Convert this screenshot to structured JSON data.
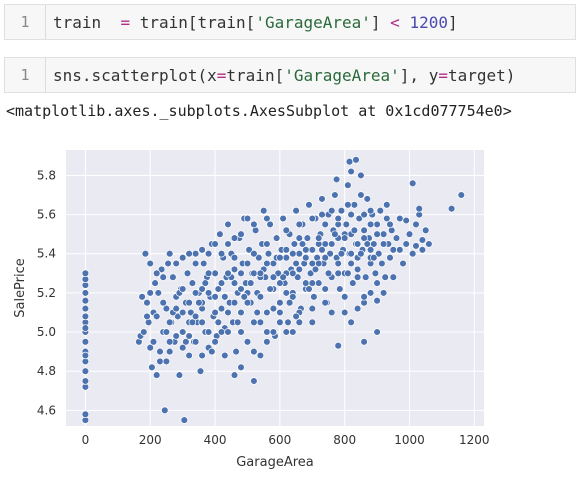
{
  "cells": [
    {
      "number": "1",
      "tokens": [
        {
          "t": "train  ",
          "c": "tok-kw"
        },
        {
          "t": "=",
          "c": "tok-op"
        },
        {
          "t": " train[train[",
          "c": "tok-kw"
        },
        {
          "t": "'GarageArea'",
          "c": "tok-str"
        },
        {
          "t": "] ",
          "c": "tok-kw"
        },
        {
          "t": "<",
          "c": "tok-op"
        },
        {
          "t": " ",
          "c": "tok-kw"
        },
        {
          "t": "1200",
          "c": "tok-num"
        },
        {
          "t": "]",
          "c": "tok-kw"
        }
      ]
    },
    {
      "number": "1",
      "tokens": [
        {
          "t": "sns.scatterplot(x",
          "c": "tok-kw"
        },
        {
          "t": "=",
          "c": "tok-op"
        },
        {
          "t": "train[",
          "c": "tok-kw"
        },
        {
          "t": "'GarageArea'",
          "c": "tok-str"
        },
        {
          "t": "], y",
          "c": "tok-kw"
        },
        {
          "t": "=",
          "c": "tok-op"
        },
        {
          "t": "target)",
          "c": "tok-kw"
        }
      ]
    }
  ],
  "output_text": "<matplotlib.axes._subplots.AxesSubplot at 0x1cd077754e0>",
  "colors": {
    "point": "#4c72b0",
    "plot_bg": "#eaeaf2",
    "grid": "#ffffff"
  },
  "chart_data": {
    "type": "scatter",
    "xlabel": "GarageArea",
    "ylabel": "SalePrice",
    "xlim": [
      -60,
      1230
    ],
    "ylim": [
      4.52,
      5.93
    ],
    "xticks": [
      0,
      200,
      400,
      600,
      800,
      1000,
      1200
    ],
    "yticks": [
      4.6,
      4.8,
      5.0,
      5.2,
      5.4,
      5.6,
      5.8
    ],
    "grid": true,
    "points": [
      [
        0,
        4.55
      ],
      [
        0,
        4.58
      ],
      [
        0,
        4.72
      ],
      [
        0,
        4.75
      ],
      [
        0,
        4.8
      ],
      [
        0,
        4.85
      ],
      [
        0,
        4.9
      ],
      [
        0,
        4.95
      ],
      [
        0,
        5.0
      ],
      [
        0,
        5.05
      ],
      [
        0,
        5.08
      ],
      [
        0,
        5.12
      ],
      [
        0,
        5.16
      ],
      [
        0,
        5.2
      ],
      [
        0,
        5.24
      ],
      [
        0,
        5.27
      ],
      [
        0,
        5.3
      ],
      [
        0,
        4.88
      ],
      [
        0,
        5.02
      ],
      [
        165,
        4.95
      ],
      [
        170,
        4.98
      ],
      [
        175,
        5.18
      ],
      [
        185,
        5.4
      ],
      [
        190,
        5.15
      ],
      [
        195,
        5.05
      ],
      [
        200,
        4.92
      ],
      [
        205,
        4.82
      ],
      [
        210,
        5.1
      ],
      [
        215,
        5.25
      ],
      [
        220,
        4.78
      ],
      [
        225,
        5.2
      ],
      [
        230,
        4.85
      ],
      [
        235,
        5.32
      ],
      [
        240,
        5.0
      ],
      [
        245,
        4.6
      ],
      [
        250,
        5.12
      ],
      [
        255,
        5.35
      ],
      [
        260,
        4.9
      ],
      [
        265,
        5.05
      ],
      [
        270,
        5.28
      ],
      [
        275,
        4.95
      ],
      [
        280,
        5.18
      ],
      [
        285,
        5.08
      ],
      [
        290,
        4.78
      ],
      [
        295,
        5.22
      ],
      [
        300,
        5.0
      ],
      [
        305,
        4.55
      ],
      [
        310,
        5.15
      ],
      [
        315,
        5.3
      ],
      [
        320,
        4.88
      ],
      [
        325,
        5.1
      ],
      [
        330,
        5.25
      ],
      [
        335,
        4.95
      ],
      [
        340,
        5.4
      ],
      [
        345,
        5.05
      ],
      [
        350,
        5.2
      ],
      [
        355,
        4.8
      ],
      [
        360,
        5.12
      ],
      [
        365,
        5.35
      ],
      [
        370,
        5.0
      ],
      [
        375,
        5.28
      ],
      [
        380,
        4.92
      ],
      [
        385,
        5.18
      ],
      [
        390,
        5.45
      ],
      [
        395,
        5.08
      ],
      [
        400,
        5.3
      ],
      [
        405,
        4.98
      ],
      [
        410,
        5.22
      ],
      [
        415,
        5.5
      ],
      [
        420,
        5.12
      ],
      [
        425,
        5.38
      ],
      [
        430,
        5.02
      ],
      [
        435,
        5.28
      ],
      [
        440,
        5.55
      ],
      [
        445,
        5.15
      ],
      [
        450,
        5.4
      ],
      [
        455,
        5.05
      ],
      [
        460,
        5.32
      ],
      [
        465,
        4.9
      ],
      [
        470,
        5.2
      ],
      [
        475,
        5.48
      ],
      [
        480,
        5.1
      ],
      [
        485,
        5.35
      ],
      [
        490,
        5.58
      ],
      [
        495,
        5.25
      ],
      [
        500,
        4.95
      ],
      [
        505,
        5.42
      ],
      [
        510,
        5.15
      ],
      [
        515,
        5.3
      ],
      [
        520,
        4.75
      ],
      [
        525,
        5.52
      ],
      [
        530,
        5.2
      ],
      [
        535,
        5.38
      ],
      [
        540,
        5.05
      ],
      [
        545,
        5.45
      ],
      [
        550,
        5.62
      ],
      [
        555,
        5.28
      ],
      [
        560,
        5.1
      ],
      [
        565,
        5.4
      ],
      [
        570,
        5.55
      ],
      [
        575,
        5.22
      ],
      [
        580,
        5.35
      ],
      [
        585,
        4.98
      ],
      [
        590,
        5.48
      ],
      [
        595,
        5.3
      ],
      [
        600,
        5.15
      ],
      [
        605,
        5.42
      ],
      [
        610,
        5.58
      ],
      [
        615,
        5.25
      ],
      [
        620,
        5.38
      ],
      [
        625,
        5.05
      ],
      [
        630,
        5.5
      ],
      [
        635,
        5.32
      ],
      [
        640,
        5.2
      ],
      [
        645,
        5.45
      ],
      [
        650,
        5.62
      ],
      [
        655,
        5.28
      ],
      [
        660,
        5.4
      ],
      [
        665,
        5.12
      ],
      [
        670,
        5.55
      ],
      [
        675,
        5.35
      ],
      [
        680,
        5.22
      ],
      [
        685,
        5.48
      ],
      [
        690,
        5.65
      ],
      [
        695,
        5.3
      ],
      [
        700,
        5.42
      ],
      [
        705,
        5.18
      ],
      [
        710,
        5.58
      ],
      [
        715,
        5.38
      ],
      [
        720,
        5.25
      ],
      [
        725,
        5.5
      ],
      [
        730,
        5.68
      ],
      [
        735,
        5.35
      ],
      [
        740,
        5.45
      ],
      [
        745,
        5.15
      ],
      [
        750,
        5.6
      ],
      [
        755,
        5.4
      ],
      [
        760,
        5.28
      ],
      [
        765,
        5.52
      ],
      [
        770,
        5.7
      ],
      [
        775,
        5.38
      ],
      [
        780,
        5.48
      ],
      [
        785,
        5.22
      ],
      [
        790,
        5.62
      ],
      [
        795,
        5.42
      ],
      [
        800,
        5.3
      ],
      [
        805,
        5.55
      ],
      [
        810,
        5.75
      ],
      [
        815,
        5.4
      ],
      [
        820,
        5.5
      ],
      [
        825,
        5.25
      ],
      [
        830,
        5.65
      ],
      [
        835,
        5.45
      ],
      [
        840,
        5.32
      ],
      [
        845,
        5.58
      ],
      [
        850,
        5.8
      ],
      [
        855,
        5.42
      ],
      [
        860,
        5.52
      ],
      [
        865,
        5.28
      ],
      [
        870,
        5.68
      ],
      [
        875,
        5.48
      ],
      [
        880,
        5.35
      ],
      [
        885,
        5.6
      ],
      [
        890,
        5.45
      ],
      [
        895,
        5.3
      ],
      [
        900,
        5.55
      ],
      [
        905,
        5.4
      ],
      [
        910,
        5.62
      ],
      [
        915,
        5.35
      ],
      [
        920,
        5.5
      ],
      [
        925,
        5.28
      ],
      [
        930,
        5.58
      ],
      [
        935,
        5.45
      ],
      [
        940,
        5.38
      ],
      [
        945,
        5.52
      ],
      [
        950,
        5.42
      ],
      [
        960,
        5.48
      ],
      [
        970,
        5.58
      ],
      [
        980,
        5.35
      ],
      [
        990,
        5.45
      ],
      [
        1000,
        5.5
      ],
      [
        1010,
        5.4
      ],
      [
        1020,
        5.55
      ],
      [
        1030,
        5.6
      ],
      [
        1040,
        5.42
      ],
      [
        1050,
        5.52
      ],
      [
        1060,
        5.45
      ],
      [
        815,
        5.87
      ],
      [
        835,
        5.88
      ],
      [
        820,
        5.82
      ],
      [
        775,
        5.78
      ],
      [
        1010,
        5.76
      ],
      [
        1160,
        5.7
      ],
      [
        1130,
        5.63
      ],
      [
        1030,
        5.63
      ],
      [
        990,
        5.57
      ],
      [
        1020,
        5.44
      ],
      [
        1040,
        5.42
      ],
      [
        1040,
        5.47
      ],
      [
        360,
        5.05
      ],
      [
        380,
        5.2
      ],
      [
        420,
        5.0
      ],
      [
        440,
        5.1
      ],
      [
        460,
        5.25
      ],
      [
        480,
        5.0
      ],
      [
        500,
        5.15
      ],
      [
        520,
        5.3
      ],
      [
        540,
        5.18
      ],
      [
        560,
        5.0
      ],
      [
        580,
        5.22
      ],
      [
        600,
        5.1
      ],
      [
        620,
        5.3
      ],
      [
        640,
        5.18
      ],
      [
        660,
        5.05
      ],
      [
        680,
        5.25
      ],
      [
        700,
        5.12
      ],
      [
        720,
        5.35
      ],
      [
        740,
        5.22
      ],
      [
        760,
        5.1
      ],
      [
        780,
        5.3
      ],
      [
        800,
        5.18
      ],
      [
        820,
        5.4
      ],
      [
        840,
        5.28
      ],
      [
        860,
        5.15
      ],
      [
        880,
        5.38
      ],
      [
        900,
        5.25
      ],
      [
        300,
        5.1
      ],
      [
        320,
        5.05
      ],
      [
        340,
        5.2
      ],
      [
        360,
        5.15
      ],
      [
        380,
        5.0
      ],
      [
        400,
        5.1
      ],
      [
        420,
        5.25
      ],
      [
        440,
        5.0
      ],
      [
        460,
        5.15
      ],
      [
        480,
        5.3
      ],
      [
        500,
        5.2
      ],
      [
        520,
        5.05
      ],
      [
        540,
        5.28
      ],
      [
        560,
        5.35
      ],
      [
        580,
        5.12
      ],
      [
        600,
        5.25
      ],
      [
        620,
        5.42
      ],
      [
        640,
        5.3
      ],
      [
        660,
        5.48
      ],
      [
        680,
        5.38
      ],
      [
        700,
        5.25
      ],
      [
        720,
        5.45
      ],
      [
        740,
        5.55
      ],
      [
        760,
        5.45
      ],
      [
        780,
        5.35
      ],
      [
        800,
        5.5
      ],
      [
        820,
        5.6
      ],
      [
        840,
        5.38
      ],
      [
        860,
        5.48
      ],
      [
        880,
        5.55
      ],
      [
        250,
        5.0
      ],
      [
        270,
        5.1
      ],
      [
        290,
        5.2
      ],
      [
        310,
        4.95
      ],
      [
        330,
        5.05
      ],
      [
        350,
        5.15
      ],
      [
        370,
        5.25
      ],
      [
        390,
        4.9
      ],
      [
        410,
        5.05
      ],
      [
        430,
        5.18
      ],
      [
        450,
        5.28
      ],
      [
        470,
        5.05
      ],
      [
        490,
        5.18
      ],
      [
        510,
        5.25
      ],
      [
        530,
        5.1
      ],
      [
        550,
        5.32
      ],
      [
        570,
        5.22
      ],
      [
        590,
        5.38
      ],
      [
        610,
        5.28
      ],
      [
        630,
        5.15
      ],
      [
        650,
        5.35
      ],
      [
        670,
        5.45
      ],
      [
        690,
        5.22
      ],
      [
        710,
        5.32
      ],
      [
        730,
        5.42
      ],
      [
        750,
        5.3
      ],
      [
        770,
        5.5
      ],
      [
        790,
        5.4
      ],
      [
        810,
        5.3
      ],
      [
        830,
        5.52
      ],
      [
        850,
        5.4
      ],
      [
        870,
        5.45
      ],
      [
        890,
        5.38
      ],
      [
        200,
        5.2
      ],
      [
        220,
        5.08
      ],
      [
        240,
        5.15
      ],
      [
        260,
        5.05
      ],
      [
        280,
        5.12
      ],
      [
        300,
        5.22
      ],
      [
        320,
        5.15
      ],
      [
        340,
        5.08
      ],
      [
        360,
        5.22
      ],
      [
        380,
        5.3
      ],
      [
        400,
        5.18
      ],
      [
        420,
        5.12
      ],
      [
        440,
        5.3
      ],
      [
        460,
        5.38
      ],
      [
        480,
        5.22
      ],
      [
        500,
        5.35
      ],
      [
        520,
        5.4
      ],
      [
        540,
        5.3
      ],
      [
        560,
        5.45
      ],
      [
        580,
        5.28
      ],
      [
        600,
        5.38
      ],
      [
        620,
        5.2
      ],
      [
        640,
        5.4
      ],
      [
        660,
        5.32
      ],
      [
        680,
        5.42
      ],
      [
        700,
        5.35
      ],
      [
        720,
        5.48
      ],
      [
        740,
        5.38
      ],
      [
        760,
        5.45
      ],
      [
        780,
        5.55
      ],
      [
        800,
        5.48
      ],
      [
        820,
        5.35
      ],
      [
        840,
        5.45
      ],
      [
        860,
        5.6
      ],
      [
        880,
        5.42
      ],
      [
        900,
        5.5
      ],
      [
        920,
        5.45
      ],
      [
        940,
        5.55
      ],
      [
        640,
        5.0
      ],
      [
        660,
        5.1
      ],
      [
        700,
        5.05
      ],
      [
        740,
        5.15
      ],
      [
        780,
        4.93
      ],
      [
        800,
        5.1
      ],
      [
        820,
        5.05
      ],
      [
        840,
        5.12
      ],
      [
        860,
        5.18
      ],
      [
        880,
        5.2
      ],
      [
        900,
        5.16
      ],
      [
        860,
        4.95
      ],
      [
        900,
        5.0
      ],
      [
        920,
        5.2
      ],
      [
        950,
        5.28
      ],
      [
        970,
        5.42
      ],
      [
        400,
        4.95
      ],
      [
        430,
        4.88
      ],
      [
        460,
        4.78
      ],
      [
        480,
        4.82
      ],
      [
        520,
        4.9
      ],
      [
        540,
        4.88
      ],
      [
        560,
        4.95
      ],
      [
        580,
        5.0
      ],
      [
        600,
        5.05
      ],
      [
        620,
        5.0
      ],
      [
        650,
        5.08
      ],
      [
        180,
        5.0
      ],
      [
        190,
        5.08
      ],
      [
        210,
        4.95
      ],
      [
        230,
        4.9
      ],
      [
        250,
        4.85
      ],
      [
        260,
        4.95
      ],
      [
        280,
        4.98
      ],
      [
        300,
        4.92
      ],
      [
        320,
        4.98
      ],
      [
        340,
        4.95
      ],
      [
        360,
        4.88
      ],
      [
        500,
        5.58
      ],
      [
        520,
        5.55
      ],
      [
        560,
        5.58
      ],
      [
        620,
        5.52
      ],
      [
        660,
        5.55
      ],
      [
        700,
        5.58
      ],
      [
        730,
        5.6
      ],
      [
        760,
        5.62
      ],
      [
        780,
        5.58
      ],
      [
        810,
        5.65
      ],
      [
        850,
        5.7
      ],
      [
        880,
        5.62
      ],
      [
        930,
        5.65
      ],
      [
        200,
        5.35
      ],
      [
        220,
        5.3
      ],
      [
        240,
        5.28
      ],
      [
        260,
        5.4
      ],
      [
        280,
        5.35
      ],
      [
        300,
        5.38
      ],
      [
        320,
        5.4
      ],
      [
        340,
        5.35
      ],
      [
        360,
        5.42
      ],
      [
        380,
        5.4
      ],
      [
        400,
        5.45
      ],
      [
        420,
        5.4
      ],
      [
        440,
        5.45
      ],
      [
        460,
        5.48
      ],
      [
        480,
        5.5
      ]
    ]
  }
}
